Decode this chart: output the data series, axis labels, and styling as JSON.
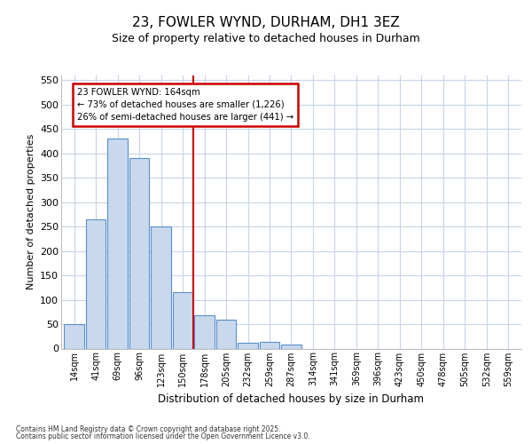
{
  "title": "23, FOWLER WYND, DURHAM, DH1 3EZ",
  "subtitle": "Size of property relative to detached houses in Durham",
  "xlabel": "Distribution of detached houses by size in Durham",
  "ylabel": "Number of detached properties",
  "categories": [
    "14sqm",
    "41sqm",
    "69sqm",
    "96sqm",
    "123sqm",
    "150sqm",
    "178sqm",
    "205sqm",
    "232sqm",
    "259sqm",
    "287sqm",
    "314sqm",
    "341sqm",
    "369sqm",
    "396sqm",
    "423sqm",
    "450sqm",
    "478sqm",
    "505sqm",
    "532sqm",
    "559sqm"
  ],
  "values": [
    50,
    265,
    430,
    390,
    250,
    115,
    68,
    60,
    12,
    14,
    8,
    0,
    0,
    0,
    0,
    0,
    0,
    0,
    0,
    0,
    0
  ],
  "bar_color": "#c8d9ee",
  "bar_edgecolor": "#5b8fc9",
  "fig_bg_color": "#ffffff",
  "plot_bg_color": "#ffffff",
  "grid_color": "#c8d4e8",
  "property_line_color": "#cc0000",
  "property_line_x": 5.5,
  "annotation_text": "23 FOWLER WYND: 164sqm\n← 73% of detached houses are smaller (1,226)\n26% of semi-detached houses are larger (441) →",
  "annotation_box_edgecolor": "#cc0000",
  "annotation_box_facecolor": "#ffffff",
  "ylim": [
    0,
    560
  ],
  "yticks": [
    0,
    50,
    100,
    150,
    200,
    250,
    300,
    350,
    400,
    450,
    500,
    550
  ],
  "footer_line1": "Contains HM Land Registry data © Crown copyright and database right 2025.",
  "footer_line2": "Contains public sector information licensed under the Open Government Licence v3.0."
}
